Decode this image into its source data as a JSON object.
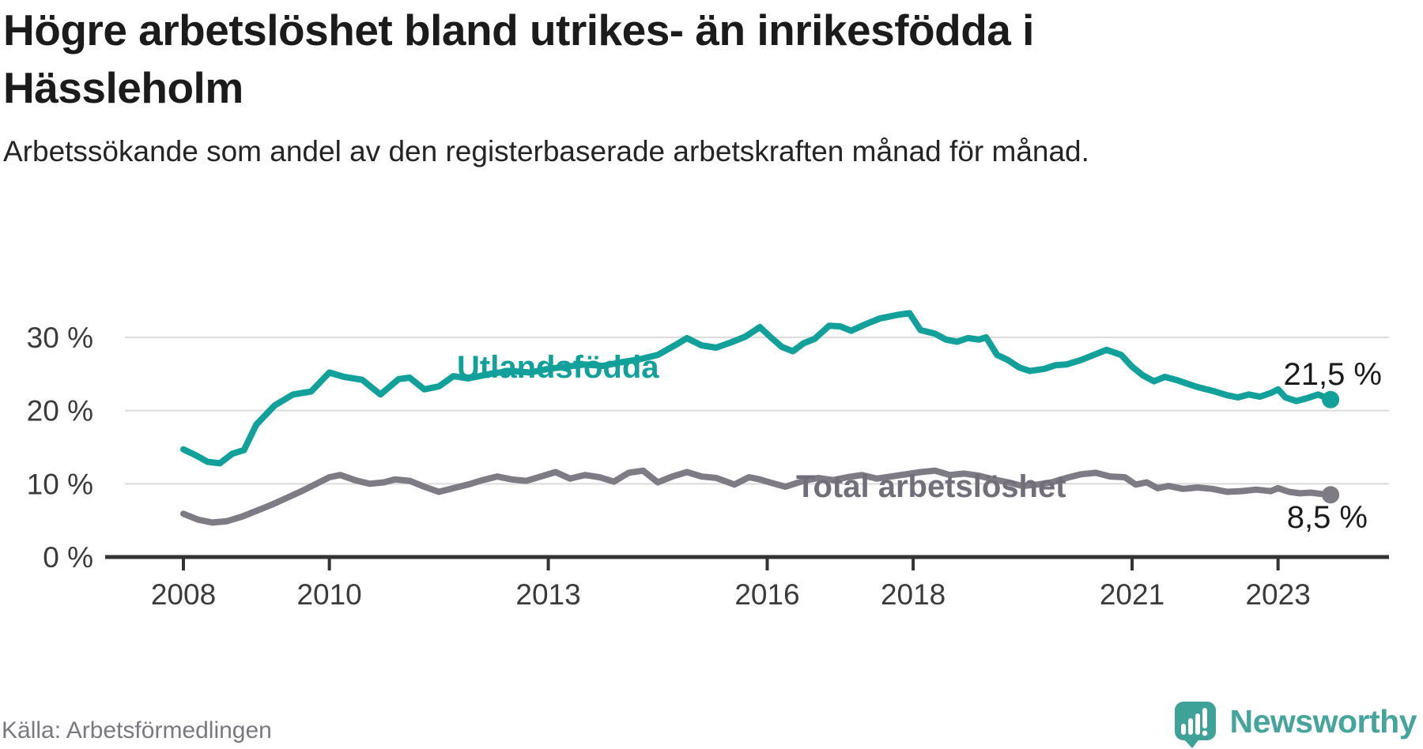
{
  "header": {
    "title": "Högre arbetslöshet bland utrikes- än inrikesfödda i Hässleholm",
    "subtitle": "Arbetssökande som andel av den registerbaserade arbetskraften månad för månad."
  },
  "footer": {
    "source": "Källa: Arbetsförmedlingen",
    "brand_name": "Newsworthy"
  },
  "colors": {
    "series_teal": "#12a19a",
    "series_gray": "#7e7b85",
    "label_gray": "#716e79",
    "annotation_text": "#1b1b1b",
    "axis_text": "#3b3b3b",
    "axis_line": "#333333",
    "gridline": "#dcdcdc",
    "logo_teal": "#3fa298"
  },
  "chart_data": {
    "type": "line",
    "title": "Högre arbetslöshet bland utrikes- än inrikesfödda i Hässleholm",
    "subtitle": "Arbetssökande som andel av den registerbaserade arbetskraften månad för månad.",
    "xlabel": "",
    "ylabel": "",
    "x_unit": "year (monthly data)",
    "xlim": [
      2007.2,
      2024.5
    ],
    "ylim": [
      0,
      40
    ],
    "grid": "horizontal",
    "legend_position": "inline-labels",
    "yticks": [
      {
        "value": 0,
        "label": "0 %"
      },
      {
        "value": 10,
        "label": "10 %"
      },
      {
        "value": 20,
        "label": "20 %"
      },
      {
        "value": 30,
        "label": "30 %"
      }
    ],
    "xticks": [
      {
        "value": 2008,
        "label": "2008"
      },
      {
        "value": 2010,
        "label": "2010"
      },
      {
        "value": 2013,
        "label": "2013"
      },
      {
        "value": 2016,
        "label": "2016"
      },
      {
        "value": 2018,
        "label": "2018"
      },
      {
        "value": 2021,
        "label": "2021"
      },
      {
        "value": 2023,
        "label": "2023"
      }
    ],
    "series": [
      {
        "name": "Utlandsfödda",
        "color": "#12a19a",
        "end_label": "21,5 %",
        "end_value": 21.5,
        "points": [
          [
            2008.0,
            14.7
          ],
          [
            2008.17,
            13.9
          ],
          [
            2008.33,
            13.0
          ],
          [
            2008.5,
            12.8
          ],
          [
            2008.67,
            14.1
          ],
          [
            2008.83,
            14.6
          ],
          [
            2009.0,
            18.1
          ],
          [
            2009.25,
            20.7
          ],
          [
            2009.5,
            22.2
          ],
          [
            2009.75,
            22.6
          ],
          [
            2010.0,
            25.2
          ],
          [
            2010.2,
            24.6
          ],
          [
            2010.45,
            24.2
          ],
          [
            2010.7,
            22.2
          ],
          [
            2010.95,
            24.3
          ],
          [
            2011.1,
            24.5
          ],
          [
            2011.3,
            22.9
          ],
          [
            2011.5,
            23.3
          ],
          [
            2011.7,
            24.7
          ],
          [
            2011.9,
            24.4
          ],
          [
            2012.25,
            25.1
          ],
          [
            2012.5,
            25.4
          ],
          [
            2012.75,
            25.2
          ],
          [
            2013.0,
            25.7
          ],
          [
            2013.25,
            26.0
          ],
          [
            2013.5,
            26.3
          ],
          [
            2013.75,
            26.1
          ],
          [
            2014.0,
            26.6
          ],
          [
            2014.25,
            27.0
          ],
          [
            2014.5,
            27.6
          ],
          [
            2014.75,
            29.0
          ],
          [
            2014.9,
            29.9
          ],
          [
            2015.1,
            28.9
          ],
          [
            2015.3,
            28.6
          ],
          [
            2015.5,
            29.3
          ],
          [
            2015.7,
            30.1
          ],
          [
            2015.9,
            31.4
          ],
          [
            2016.05,
            30.0
          ],
          [
            2016.2,
            28.7
          ],
          [
            2016.35,
            28.1
          ],
          [
            2016.5,
            29.2
          ],
          [
            2016.65,
            29.8
          ],
          [
            2016.85,
            31.6
          ],
          [
            2017.0,
            31.5
          ],
          [
            2017.15,
            30.9
          ],
          [
            2017.35,
            31.8
          ],
          [
            2017.55,
            32.6
          ],
          [
            2017.8,
            33.1
          ],
          [
            2017.95,
            33.3
          ],
          [
            2018.1,
            31.0
          ],
          [
            2018.3,
            30.5
          ],
          [
            2018.45,
            29.7
          ],
          [
            2018.6,
            29.4
          ],
          [
            2018.75,
            29.9
          ],
          [
            2018.9,
            29.7
          ],
          [
            2019.0,
            30.0
          ],
          [
            2019.15,
            27.6
          ],
          [
            2019.3,
            26.9
          ],
          [
            2019.45,
            25.9
          ],
          [
            2019.6,
            25.4
          ],
          [
            2019.8,
            25.7
          ],
          [
            2019.95,
            26.2
          ],
          [
            2020.1,
            26.3
          ],
          [
            2020.3,
            26.9
          ],
          [
            2020.5,
            27.7
          ],
          [
            2020.65,
            28.3
          ],
          [
            2020.85,
            27.6
          ],
          [
            2021.0,
            26.0
          ],
          [
            2021.15,
            24.8
          ],
          [
            2021.3,
            24.0
          ],
          [
            2021.45,
            24.6
          ],
          [
            2021.6,
            24.2
          ],
          [
            2021.75,
            23.7
          ],
          [
            2021.9,
            23.2
          ],
          [
            2022.1,
            22.7
          ],
          [
            2022.3,
            22.1
          ],
          [
            2022.45,
            21.8
          ],
          [
            2022.6,
            22.2
          ],
          [
            2022.75,
            21.9
          ],
          [
            2022.9,
            22.4
          ],
          [
            2023.0,
            22.9
          ],
          [
            2023.1,
            21.8
          ],
          [
            2023.25,
            21.3
          ],
          [
            2023.4,
            21.7
          ],
          [
            2023.55,
            22.2
          ],
          [
            2023.72,
            21.5
          ]
        ]
      },
      {
        "name": "Total arbetslöshet",
        "color": "#7e7b85",
        "end_label": "8,5 %",
        "end_value": 8.5,
        "points": [
          [
            2008.0,
            5.9
          ],
          [
            2008.2,
            5.1
          ],
          [
            2008.4,
            4.7
          ],
          [
            2008.6,
            4.9
          ],
          [
            2008.8,
            5.5
          ],
          [
            2009.0,
            6.3
          ],
          [
            2009.2,
            7.1
          ],
          [
            2009.4,
            8.0
          ],
          [
            2009.6,
            8.9
          ],
          [
            2009.8,
            9.9
          ],
          [
            2010.0,
            10.9
          ],
          [
            2010.15,
            11.2
          ],
          [
            2010.35,
            10.5
          ],
          [
            2010.55,
            10.0
          ],
          [
            2010.75,
            10.2
          ],
          [
            2010.9,
            10.6
          ],
          [
            2011.1,
            10.4
          ],
          [
            2011.3,
            9.6
          ],
          [
            2011.5,
            8.9
          ],
          [
            2011.7,
            9.4
          ],
          [
            2011.9,
            9.9
          ],
          [
            2012.1,
            10.5
          ],
          [
            2012.3,
            11.0
          ],
          [
            2012.5,
            10.6
          ],
          [
            2012.7,
            10.4
          ],
          [
            2012.9,
            11.0
          ],
          [
            2013.1,
            11.6
          ],
          [
            2013.3,
            10.7
          ],
          [
            2013.5,
            11.2
          ],
          [
            2013.7,
            10.9
          ],
          [
            2013.9,
            10.3
          ],
          [
            2014.1,
            11.5
          ],
          [
            2014.3,
            11.8
          ],
          [
            2014.5,
            10.2
          ],
          [
            2014.7,
            11.0
          ],
          [
            2014.9,
            11.6
          ],
          [
            2015.1,
            11.0
          ],
          [
            2015.3,
            10.8
          ],
          [
            2015.55,
            9.9
          ],
          [
            2015.75,
            10.9
          ],
          [
            2015.9,
            10.6
          ],
          [
            2016.1,
            10.0
          ],
          [
            2016.25,
            9.6
          ],
          [
            2016.5,
            10.4
          ],
          [
            2016.7,
            10.8
          ],
          [
            2016.9,
            10.5
          ],
          [
            2017.1,
            10.9
          ],
          [
            2017.3,
            11.2
          ],
          [
            2017.5,
            10.7
          ],
          [
            2017.7,
            11.0
          ],
          [
            2017.9,
            11.3
          ],
          [
            2018.1,
            11.6
          ],
          [
            2018.3,
            11.8
          ],
          [
            2018.5,
            11.2
          ],
          [
            2018.7,
            11.4
          ],
          [
            2018.9,
            11.1
          ],
          [
            2019.1,
            10.6
          ],
          [
            2019.3,
            10.2
          ],
          [
            2019.5,
            9.7
          ],
          [
            2019.7,
            9.9
          ],
          [
            2019.9,
            10.2
          ],
          [
            2020.1,
            10.8
          ],
          [
            2020.3,
            11.3
          ],
          [
            2020.5,
            11.5
          ],
          [
            2020.7,
            11.0
          ],
          [
            2020.9,
            10.9
          ],
          [
            2021.05,
            9.9
          ],
          [
            2021.2,
            10.2
          ],
          [
            2021.35,
            9.4
          ],
          [
            2021.5,
            9.7
          ],
          [
            2021.7,
            9.3
          ],
          [
            2021.9,
            9.5
          ],
          [
            2022.1,
            9.3
          ],
          [
            2022.3,
            8.9
          ],
          [
            2022.5,
            9.0
          ],
          [
            2022.7,
            9.2
          ],
          [
            2022.9,
            9.0
          ],
          [
            2023.0,
            9.4
          ],
          [
            2023.15,
            8.9
          ],
          [
            2023.3,
            8.7
          ],
          [
            2023.45,
            8.8
          ],
          [
            2023.6,
            8.6
          ],
          [
            2023.72,
            8.5
          ]
        ]
      }
    ]
  }
}
